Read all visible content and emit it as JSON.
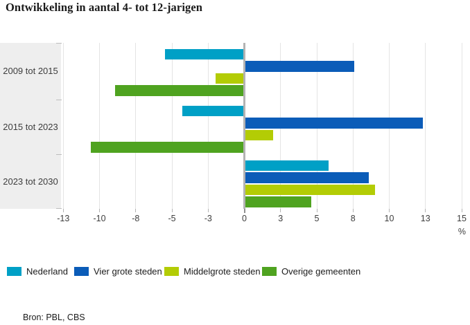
{
  "title": "Ontwikkeling in aantal 4- tot 12-jarigen",
  "source": "Bron: PBL, CBS",
  "axis": {
    "tick_values": [
      -12.5,
      -10,
      -7.5,
      -5,
      -2.5,
      0,
      2.5,
      5,
      7.5,
      10,
      12.5,
      15
    ],
    "tick_labels": [
      "-13",
      "-10",
      "-8",
      "-5",
      "-3",
      "0",
      "3",
      "5",
      "8",
      "10",
      "13",
      "15"
    ],
    "unit_label": "%"
  },
  "chart_data": {
    "type": "bar",
    "orientation": "horizontal",
    "title": "Ontwikkeling in aantal 4- tot 12-jarigen",
    "xlabel": "%",
    "xlim": [
      -12.7,
      15.3
    ],
    "grid": true,
    "legend_position": "bottom",
    "categories": [
      "2009 tot 2015",
      "2015 tot 2023",
      "2023 tot 2030"
    ],
    "series": [
      {
        "name": "Nederland",
        "color": "#00a0c6",
        "values": [
          -5.5,
          -4.3,
          5.8
        ]
      },
      {
        "name": "Vier grote steden",
        "color": "#0b5cb8",
        "values": [
          7.6,
          12.3,
          8.6
        ]
      },
      {
        "name": "Middelgrote steden",
        "color": "#b3cc05",
        "values": [
          -2.0,
          2.0,
          9.0
        ]
      },
      {
        "name": "Overige gemeenten",
        "color": "#4fa320",
        "values": [
          -8.9,
          -10.6,
          4.6
        ]
      }
    ]
  },
  "colors": {
    "band_background": "#eeeeee",
    "gridline": "#e4e4e4",
    "zero_line": "#b3b3b3",
    "axis_text": "#3d3d3d"
  }
}
